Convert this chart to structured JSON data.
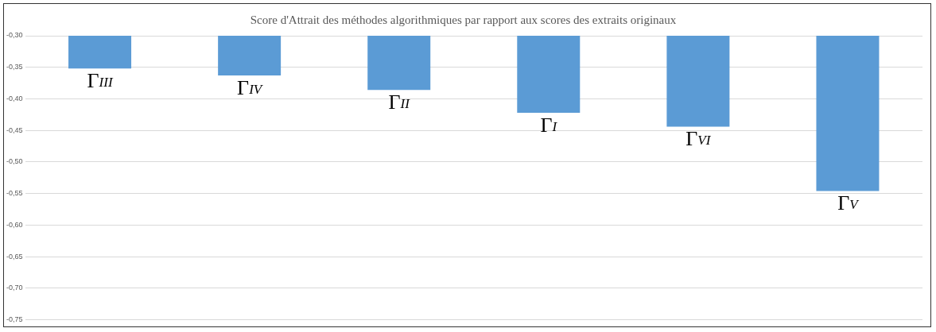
{
  "chart_data": {
    "type": "bar",
    "title": "Score d'Attrait des méthodes algorithmiques par rapport aux scores des extraits originaux",
    "categories": [
      "Γ$_{III}$",
      "Γ$_{IV}$",
      "Γ$_{II}$",
      "Γ$_{I}$",
      "Γ$_{VI}$",
      "Γ$_{V}$"
    ],
    "values": [
      -0.352,
      -0.363,
      -0.386,
      -0.422,
      -0.444,
      -0.546
    ],
    "color": "#5b9bd5",
    "ylim": [
      -0.75,
      -0.3
    ],
    "yticks": [
      {
        "value": -0.3,
        "label": "-0,30"
      },
      {
        "value": -0.35,
        "label": "-0,35"
      },
      {
        "value": -0.4,
        "label": "-0,40"
      },
      {
        "value": -0.45,
        "label": "-0,45"
      },
      {
        "value": -0.5,
        "label": "-0,50"
      },
      {
        "value": -0.55,
        "label": "-0,55"
      },
      {
        "value": -0.6,
        "label": "-0,60"
      },
      {
        "value": -0.65,
        "label": "-0,65"
      },
      {
        "value": -0.7,
        "label": "-0,70"
      },
      {
        "value": -0.75,
        "label": "-0,75"
      }
    ],
    "grid": true
  }
}
